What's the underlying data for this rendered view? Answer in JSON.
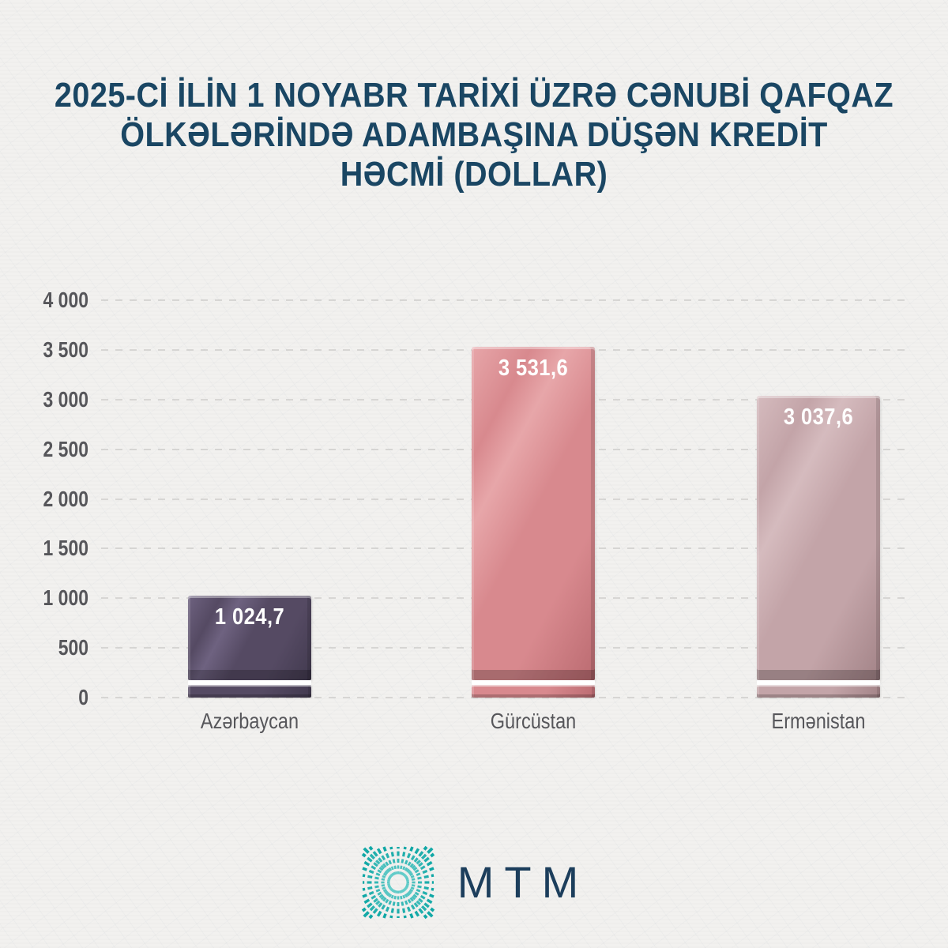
{
  "title_lines": [
    "2025-Cİ İLİN 1 NOYABR TARİXİ ÜZRƏ CƏNUBİ QAFQAZ",
    "ÖLKƏLƏRİNDƏ ADAMBAŞINA DÜŞƏN KREDİT",
    "HƏCMİ (DOLLAR)"
  ],
  "chart_data": {
    "type": "bar",
    "title": "2025-ci ilin 1 noyabr tarixi üzrə Cənubi Qafqaz ölkələrində adambaşına düşən kredit həcmi (dollar)",
    "categories": [
      "Azərbaycan",
      "Gürcüstan",
      "Ermənistan"
    ],
    "values": [
      1024.7,
      3531.6,
      3037.6
    ],
    "value_labels": [
      "1 024,7",
      "3 531,6",
      "3 037,6"
    ],
    "xlabel": "",
    "ylabel": "",
    "ylim": [
      0,
      4000
    ],
    "ytick_step": 500,
    "ytick_labels": [
      "0",
      "500",
      "1 000",
      "1 500",
      "2 000",
      "2 500",
      "3 000",
      "3 500",
      "4 000"
    ],
    "grid": "horizontal-dashed",
    "legend": "none",
    "bar_styles": [
      {
        "name": "Azərbaycan",
        "base": "#554a63",
        "light": "#6e6280",
        "dark": "#423a4f"
      },
      {
        "name": "Gürcüstan",
        "base": "#d8898e",
        "light": "#e7a6a9",
        "dark": "#bb6b71"
      },
      {
        "name": "Ermənistan",
        "base": "#c3a4a8",
        "light": "#d5bbbe",
        "dark": "#a28387"
      }
    ]
  },
  "footer": {
    "logo_text": "MTM",
    "logo_mark": "teal-dash-starburst-icon",
    "logo_teal_inner": "#6fd0cd",
    "logo_teal_outer": "#0fa7a5",
    "logo_text_color": "#1c3e5c"
  },
  "colors": {
    "background": "#f2f1ef",
    "title": "#1a4663",
    "axis_label": "#56565a",
    "grid": "#c2c1bf",
    "value_label": "#ffffff"
  }
}
